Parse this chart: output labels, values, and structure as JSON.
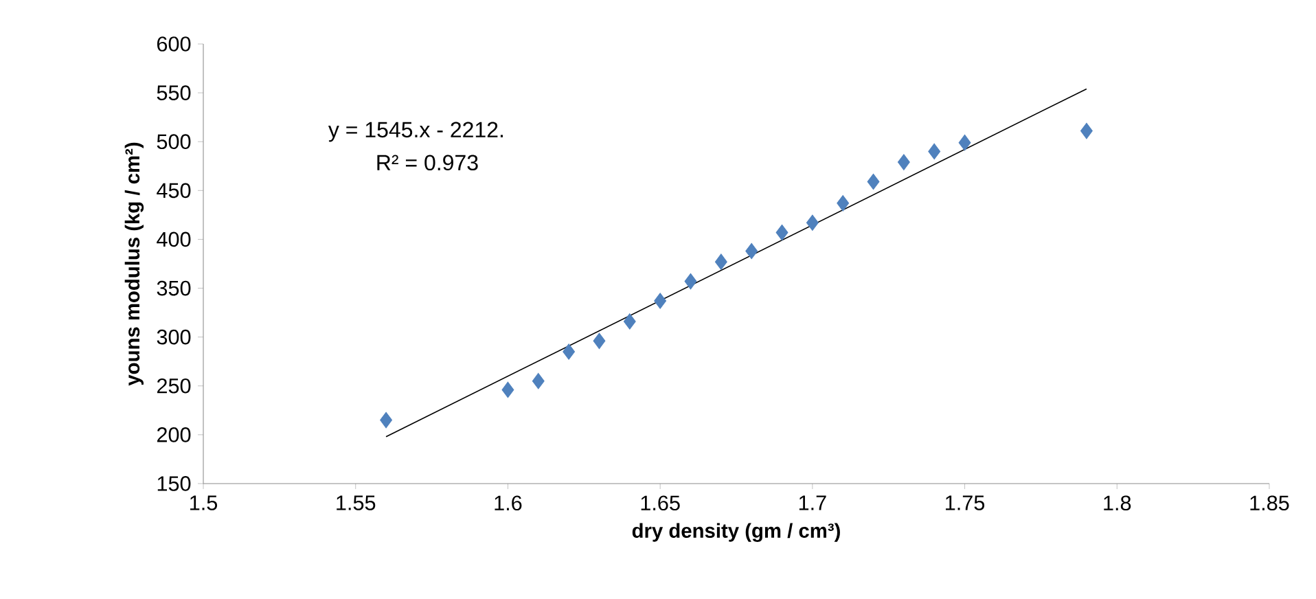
{
  "chart_data": {
    "type": "scatter",
    "xlabel": "dry density (gm / cm³)",
    "ylabel": "youns modulus (kg / cm²)",
    "annotations": [
      "y = 1545.x - 2212.",
      "R² = 0.973"
    ],
    "xlim": [
      1.5,
      1.85
    ],
    "xticks": [
      1.5,
      1.55,
      1.6,
      1.65,
      1.7,
      1.75,
      1.8,
      1.85
    ],
    "ylim": [
      150,
      600
    ],
    "yticks": [
      150,
      200,
      250,
      300,
      350,
      400,
      450,
      500,
      550,
      600
    ],
    "series": [
      {
        "color": "#4f81bd",
        "marker": "diamond",
        "x": [
          1.56,
          1.6,
          1.61,
          1.62,
          1.63,
          1.64,
          1.65,
          1.66,
          1.67,
          1.68,
          1.69,
          1.7,
          1.71,
          1.72,
          1.73,
          1.74,
          1.75,
          1.79
        ],
        "values": [
          215,
          246,
          255,
          285,
          296,
          316,
          337,
          357,
          377,
          388,
          407,
          417,
          437,
          459,
          479,
          490,
          499,
          511
        ]
      },
      {
        "type": "line",
        "color": "#000000",
        "marker": "none",
        "x": [
          1.56,
          1.79
        ],
        "values": [
          198,
          554
        ]
      }
    ]
  }
}
